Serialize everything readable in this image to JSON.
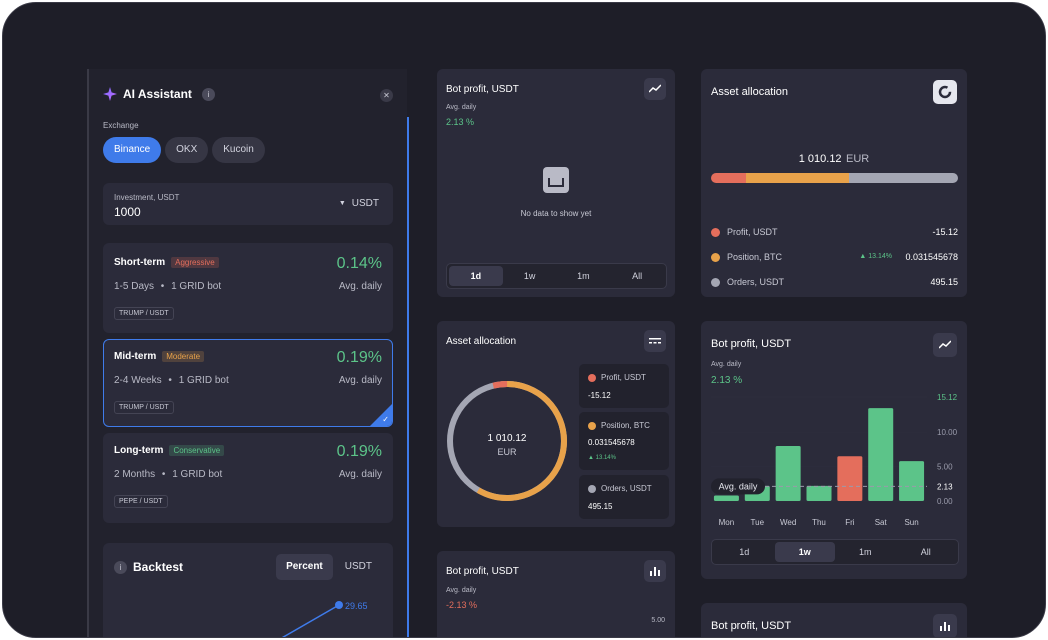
{
  "assistant": {
    "title": "AI Assistant",
    "exchange_label": "Exchange",
    "exchanges": [
      "Binance",
      "OKX",
      "Kucoin"
    ],
    "investment": {
      "label": "Investment, USDT",
      "value": "1000",
      "currency": "USDT"
    },
    "strategies": [
      {
        "name": "Short-term",
        "tag": "Aggressive",
        "duration": "1-5 Days",
        "bots": "1 GRID bot",
        "pair": "TRUMP / USDT",
        "percent": "0.14%",
        "sub": "Avg. daily",
        "tag_color": "#e46e5c"
      },
      {
        "name": "Mid-term",
        "tag": "Moderate",
        "duration": "2-4 Weeks",
        "bots": "1 GRID bot",
        "pair": "TRUMP / USDT",
        "percent": "0.19%",
        "sub": "Avg. daily",
        "tag_color": "#e8a24a"
      },
      {
        "name": "Long-term",
        "tag": "Conservative",
        "duration": "2 Months",
        "bots": "1 GRID bot",
        "pair": "PEPE / USDT",
        "percent": "0.19%",
        "sub": "Avg. daily",
        "tag_color": "#5cc489"
      }
    ],
    "backtest": {
      "title": "Backtest",
      "tabs": [
        "Percent",
        "USDT"
      ],
      "value": "29.65"
    }
  },
  "bot_profit_empty": {
    "title": "Bot profit, USDT",
    "avg_label": "Avg. daily",
    "avg_value": "2.13 %",
    "empty_text": "No data to show yet",
    "periods": [
      "1d",
      "1w",
      "1m",
      "All"
    ]
  },
  "asset_allocation_bar": {
    "title": "Asset allocation",
    "total": "1 010.12",
    "currency": "EUR",
    "items": [
      {
        "name": "Profit, USDT",
        "value": "-15.12",
        "color": "#e46e5c",
        "delta": ""
      },
      {
        "name": "Position, BTC",
        "value": "0.031545678",
        "color": "#e8a24a",
        "delta": "13.14%"
      },
      {
        "name": "Orders, USDT",
        "value": "495.15",
        "color": "#a4a6b3",
        "delta": ""
      }
    ]
  },
  "asset_allocation_donut": {
    "title": "Asset allocation",
    "total": "1 010.12",
    "currency": "EUR",
    "items": [
      {
        "name": "Profit, USDT",
        "value": "-15.12",
        "color": "#e46e5c",
        "delta": ""
      },
      {
        "name": "Position, BTC",
        "value": "0.031545678",
        "color": "#e8a24a",
        "delta": "13.14%"
      },
      {
        "name": "Orders, USDT",
        "value": "495.15",
        "color": "#a4a6b3",
        "delta": ""
      }
    ]
  },
  "bot_profit_chart": {
    "title": "Bot profit, USDT",
    "avg_label": "Avg. daily",
    "avg_value": "2.13 %",
    "avg_line_label": "Avg. daily",
    "periods": [
      "1d",
      "1w",
      "1m",
      "All"
    ]
  },
  "bot_profit_small": {
    "title": "Bot profit, USDT",
    "avg_label": "Avg. daily",
    "avg_value": "-2.13 %",
    "tick_top": "5.00"
  },
  "bot_profit_bottom": {
    "title": "Bot profit, USDT"
  },
  "chart_data": {
    "type": "bar",
    "categories": [
      "Mon",
      "Tue",
      "Wed",
      "Thu",
      "Fri",
      "Sat",
      "Sun"
    ],
    "values": [
      0.8,
      2.2,
      8.0,
      2.2,
      6.5,
      13.5,
      5.8
    ],
    "y_ticks": [
      "15.12",
      "10.00",
      "5.00",
      "2.13",
      "0.00"
    ],
    "avg_line": 2.13,
    "ylim": [
      0,
      15.12
    ],
    "bar_colors": [
      "#5cc489",
      "#5cc489",
      "#5cc489",
      "#5cc489",
      "#e46e5c",
      "#5cc489",
      "#5cc489"
    ]
  }
}
